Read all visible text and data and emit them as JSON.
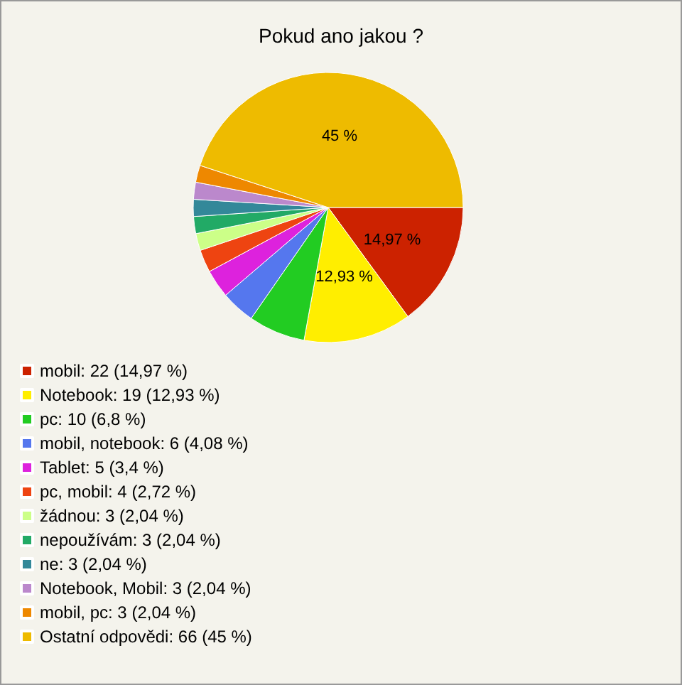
{
  "chart_data": {
    "type": "pie",
    "title": "Pokud ano jakou ?",
    "categories": [
      "mobil: 22 (14,97 %)",
      "Notebook: 19 (12,93 %)",
      "pc: 10 (6,8 %)",
      "mobil, notebook: 6 (4,08 %)",
      "Tablet: 5 (3,4 %)",
      "pc, mobil: 4 (2,72 %)",
      "žádnou: 3 (2,04 %)",
      "nepoužívám: 3 (2,04 %)",
      "ne: 3 (2,04 %)",
      "Notebook, Mobil: 3 (2,04 %)",
      "mobil, pc: 3 (2,04 %)",
      "Ostatní odpovědi: 66 (45 %)"
    ],
    "values": [
      14.97,
      12.93,
      6.8,
      4.08,
      3.4,
      2.72,
      2.04,
      2.04,
      2.04,
      2.04,
      2.04,
      45
    ],
    "colors": [
      "#cc2200",
      "#ffee00",
      "#22cc22",
      "#5577ee",
      "#dd22dd",
      "#ee4411",
      "#ccff88",
      "#22aa66",
      "#338899",
      "#bb88cc",
      "#ee8800",
      "#eebb00"
    ],
    "value_labels": [
      "14,97 %",
      "12,93 %",
      null,
      null,
      null,
      null,
      null,
      null,
      null,
      null,
      null,
      "45 %"
    ],
    "legend": "bottom left"
  }
}
